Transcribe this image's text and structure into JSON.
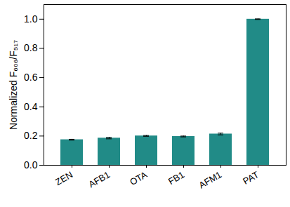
{
  "chart_data": {
    "type": "bar",
    "y_label": "Normalized F₆₀₆/F₅₁₇",
    "categories": [
      "ZEN",
      "AFB1",
      "OTA",
      "FB1",
      "AFM1",
      "PAT"
    ],
    "values": [
      0.175,
      0.186,
      0.201,
      0.197,
      0.214,
      1.0
    ],
    "errors": [
      0.003,
      0.005,
      0.003,
      0.003,
      0.006,
      0.002
    ],
    "color": "#218b87",
    "ylim": [
      0,
      1.1
    ],
    "yticks": [
      {
        "value": 0,
        "label": "0.0"
      },
      {
        "value": 0.2,
        "label": "0.2"
      },
      {
        "value": 0.4,
        "label": "0.4"
      },
      {
        "value": 0.6,
        "label": "0.6"
      },
      {
        "value": 0.8,
        "label": "0.8"
      },
      {
        "value": 1.0,
        "label": "1.0"
      }
    ],
    "grid": false
  }
}
